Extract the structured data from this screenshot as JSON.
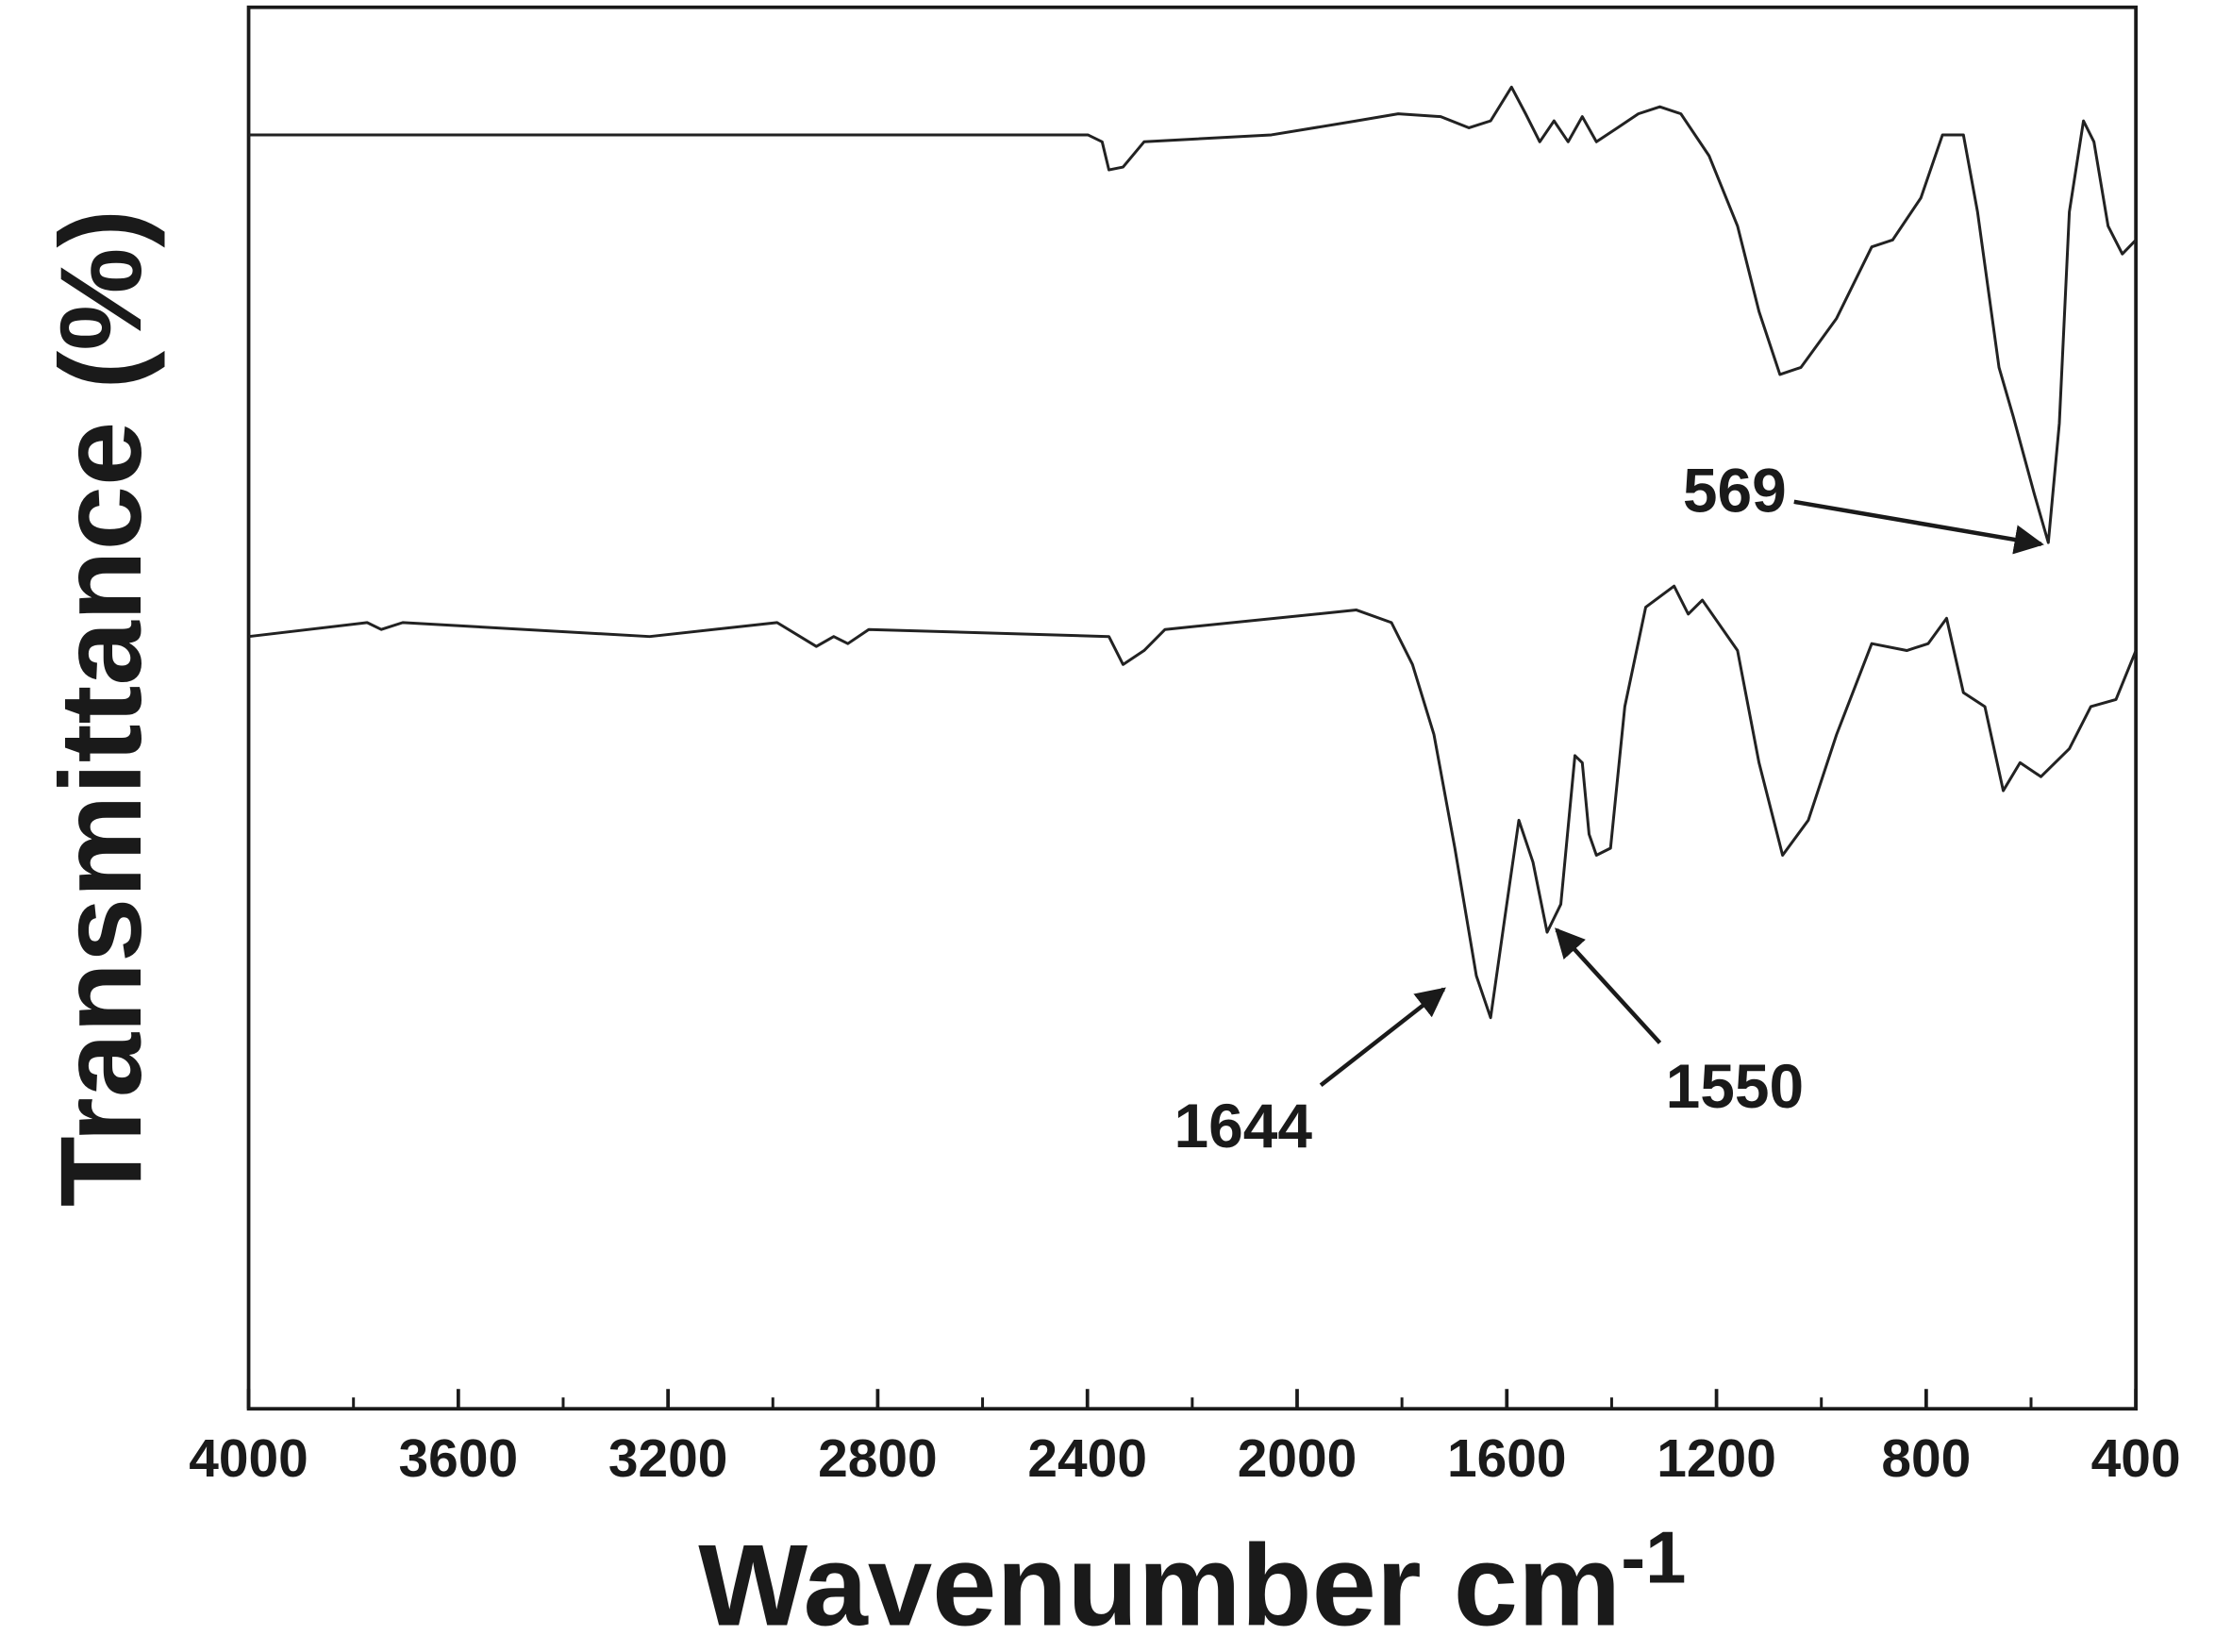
{
  "chart_data": {
    "type": "line",
    "ylabel": "Transmittance (%)",
    "xlabel": "Wavenumber cm",
    "xlabel_superscript": "-1",
    "xlim": [
      4000,
      400
    ],
    "xticks": [
      4000,
      3600,
      3200,
      2800,
      2400,
      2000,
      1600,
      1200,
      800,
      400
    ],
    "xminorticks": [
      3800,
      3400,
      3000,
      2600,
      2200,
      1800,
      1400,
      1000,
      600
    ],
    "ylim": [
      0,
      100
    ],
    "yticks": [],
    "series": [
      {
        "color": "#222222",
        "x": [
          4000,
          2399,
          2372,
          2359,
          2332,
          2292,
          2049,
          1887,
          1807,
          1726,
          1672,
          1631,
          1591,
          1564,
          1537,
          1510,
          1483,
          1456,
          1429,
          1389,
          1349,
          1308,
          1268,
          1214,
          1160,
          1119,
          1079,
          1039,
          971,
          904,
          864,
          810,
          769,
          729,
          702,
          661,
          634,
          594,
          567,
          546,
          527,
          500,
          480,
          453,
          426,
          400
        ],
        "values": [
          90.9,
          90.9,
          90.4,
          88.4,
          88.6,
          90.4,
          90.9,
          91.9,
          92.4,
          92.2,
          91.4,
          91.9,
          94.3,
          92.4,
          90.4,
          91.9,
          90.4,
          92.2,
          90.4,
          91.4,
          92.4,
          92.9,
          92.4,
          89.4,
          84.4,
          78.3,
          73.8,
          74.3,
          77.8,
          82.9,
          83.4,
          86.4,
          90.9,
          90.9,
          85.4,
          74.3,
          70.8,
          65.3,
          61.8,
          70.3,
          85.4,
          91.9,
          90.4,
          84.4,
          82.4,
          83.4
        ]
      },
      {
        "color": "#222222",
        "x": [
          4000,
          3774,
          3747,
          3706,
          3235,
          2992,
          2917,
          2884,
          2857,
          2817,
          2359,
          2332,
          2292,
          2252,
          1887,
          1820,
          1780,
          1739,
          1699,
          1658,
          1631,
          1604,
          1577,
          1550,
          1523,
          1497,
          1470,
          1456,
          1443,
          1429,
          1402,
          1375,
          1335,
          1281,
          1254,
          1227,
          1160,
          1119,
          1074,
          1025,
          971,
          904,
          837,
          796,
          761,
          729,
          688,
          653,
          621,
          581,
          527,
          486,
          438,
          400
        ],
        "values": [
          55.1,
          56.1,
          55.6,
          56.1,
          55.1,
          56.1,
          54.4,
          55.1,
          54.6,
          55.6,
          55.1,
          53.1,
          54.1,
          55.6,
          57.0,
          56.1,
          53.1,
          48.1,
          40.0,
          30.9,
          27.9,
          35.0,
          42.0,
          39.0,
          34.0,
          36.0,
          46.6,
          46.1,
          41.0,
          39.5,
          40.0,
          50.1,
          57.2,
          58.7,
          56.7,
          57.7,
          54.1,
          46.1,
          39.5,
          42.0,
          48.1,
          54.6,
          54.1,
          54.6,
          56.4,
          51.1,
          50.1,
          44.1,
          46.1,
          45.1,
          47.1,
          50.1,
          50.6,
          54.1
        ]
      }
    ],
    "annotations": [
      {
        "text": "569"
      },
      {
        "text": "1644"
      },
      {
        "text": "1550"
      }
    ]
  }
}
